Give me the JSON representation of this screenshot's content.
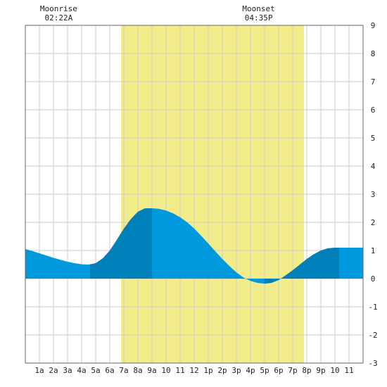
{
  "chart_data": {
    "type": "area",
    "x_tick_labels": [
      "1a",
      "2a",
      "3a",
      "4a",
      "5a",
      "6a",
      "7a",
      "8a",
      "9a",
      "10",
      "11",
      "12",
      "1p",
      "2p",
      "3p",
      "4p",
      "5p",
      "6p",
      "7p",
      "8p",
      "9p",
      "10",
      "11"
    ],
    "y_ticks": [
      -3,
      -2,
      -1,
      0,
      1,
      2,
      3,
      4,
      5,
      6,
      7,
      8,
      9
    ],
    "ylim": [
      -3,
      9
    ],
    "xlim_hours": [
      0,
      24
    ],
    "daylight_hours": [
      6.8,
      19.8
    ],
    "moonrise": {
      "label": "Moonrise",
      "time": "02:22A",
      "hour": 2.37
    },
    "moonset": {
      "label": "Moonset",
      "time": "04:35P",
      "hour": 16.58
    },
    "series": [
      {
        "x": [
          0,
          0.5,
          1,
          1.5,
          2,
          2.5,
          3,
          3.5,
          4,
          4.5,
          5,
          5.5,
          6,
          6.5,
          7,
          7.5,
          8,
          8.5,
          9,
          9.5,
          10,
          10.5,
          11,
          11.5,
          12,
          12.5,
          13,
          13.5,
          14,
          14.5,
          15,
          15.5,
          16,
          16.5,
          17,
          17.5,
          18,
          18.5,
          19,
          19.5,
          20,
          20.5,
          21,
          21.5,
          22,
          22.5,
          23,
          23.5,
          24
        ],
        "values": [
          1.05,
          0.98,
          0.9,
          0.82,
          0.74,
          0.67,
          0.6,
          0.55,
          0.51,
          0.5,
          0.55,
          0.72,
          1.0,
          1.38,
          1.78,
          2.12,
          2.38,
          2.5,
          2.5,
          2.48,
          2.42,
          2.32,
          2.18,
          2.0,
          1.78,
          1.52,
          1.25,
          0.97,
          0.7,
          0.45,
          0.22,
          0.04,
          -0.08,
          -0.15,
          -0.18,
          -0.15,
          -0.05,
          0.12,
          0.3,
          0.5,
          0.7,
          0.87,
          1.0,
          1.08,
          1.1,
          1.1,
          1.1,
          1.1,
          1.1
        ]
      }
    ],
    "tide_turn_hours": [
      0,
      4.6,
      9.0,
      17.0,
      22.3,
      24
    ],
    "colors": {
      "daylight": "#f2ec8a",
      "grid": "#cccccc",
      "tide_light": "#0099dd",
      "tide_dark": "#0080bb",
      "border": "#666666",
      "text": "#222222"
    }
  }
}
